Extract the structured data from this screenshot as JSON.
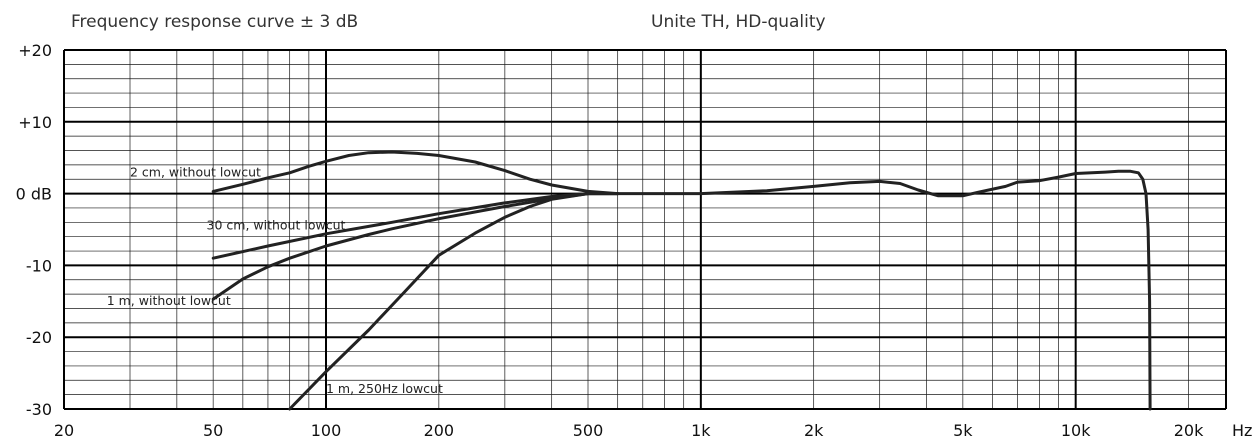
{
  "header": {
    "left_title": "Frequency response curve ± 3 dB",
    "right_title": "Unite TH, HD-quality"
  },
  "chart_data": {
    "type": "line",
    "x_scale": "log",
    "xlim": [
      20,
      20000
    ],
    "ylim": [
      -30,
      20
    ],
    "x_unit_label": "Hz",
    "grid": true,
    "x_ticks": [
      {
        "value": 20,
        "label": "20"
      },
      {
        "value": 50,
        "label": "50"
      },
      {
        "value": 100,
        "label": "100"
      },
      {
        "value": 200,
        "label": "200"
      },
      {
        "value": 500,
        "label": "500"
      },
      {
        "value": 1000,
        "label": "1k"
      },
      {
        "value": 2000,
        "label": "2k"
      },
      {
        "value": 5000,
        "label": "5k"
      },
      {
        "value": 10000,
        "label": "10k"
      },
      {
        "value": 20000,
        "label": "20k"
      }
    ],
    "y_ticks": [
      {
        "value": 20,
        "label": "+20"
      },
      {
        "value": 10,
        "label": "+10"
      },
      {
        "value": 0,
        "label": "0 dB"
      },
      {
        "value": -10,
        "label": "-10"
      },
      {
        "value": -20,
        "label": "-20"
      },
      {
        "value": -30,
        "label": "-30"
      }
    ],
    "series": [
      {
        "name": "2 cm, without lowcut",
        "points": [
          [
            50,
            0.3
          ],
          [
            60,
            1.3
          ],
          [
            70,
            2.2
          ],
          [
            80,
            2.9
          ],
          [
            90,
            3.8
          ],
          [
            100,
            4.5
          ],
          [
            115,
            5.3
          ],
          [
            130,
            5.7
          ],
          [
            150,
            5.8
          ],
          [
            175,
            5.6
          ],
          [
            200,
            5.3
          ],
          [
            250,
            4.4
          ],
          [
            300,
            3.2
          ],
          [
            350,
            2.0
          ],
          [
            400,
            1.2
          ],
          [
            500,
            0.3
          ],
          [
            600,
            0
          ],
          [
            1000,
            0
          ],
          [
            1500,
            0.4
          ],
          [
            2000,
            1.0
          ],
          [
            2500,
            1.5
          ],
          [
            3000,
            1.7
          ],
          [
            3400,
            1.4
          ],
          [
            3800,
            0.5
          ],
          [
            4300,
            -0.3
          ],
          [
            5000,
            -0.3
          ],
          [
            5500,
            0.2
          ],
          [
            6500,
            1.0
          ],
          [
            7000,
            1.6
          ],
          [
            8000,
            1.8
          ],
          [
            9000,
            2.3
          ],
          [
            10000,
            2.8
          ],
          [
            12000,
            3.0
          ],
          [
            13000,
            3.1
          ],
          [
            14000,
            3.1
          ],
          [
            14700,
            2.9
          ],
          [
            15100,
            2.0
          ],
          [
            15400,
            0
          ],
          [
            15600,
            -5
          ],
          [
            15750,
            -15
          ],
          [
            15800,
            -30
          ]
        ]
      },
      {
        "name": "30 cm, without lowcut",
        "points": [
          [
            50,
            -9
          ],
          [
            70,
            -7.3
          ],
          [
            100,
            -5.6
          ],
          [
            150,
            -4.0
          ],
          [
            200,
            -2.8
          ],
          [
            300,
            -1.3
          ],
          [
            400,
            -0.4
          ],
          [
            500,
            0
          ],
          [
            600,
            0
          ]
        ]
      },
      {
        "name": "1 m, without lowcut",
        "points": [
          [
            50,
            -14.7
          ],
          [
            60,
            -11.9
          ],
          [
            70,
            -10.2
          ],
          [
            80,
            -9.0
          ],
          [
            100,
            -7.3
          ],
          [
            130,
            -5.7
          ],
          [
            150,
            -4.9
          ],
          [
            200,
            -3.5
          ],
          [
            300,
            -1.8
          ],
          [
            400,
            -0.7
          ],
          [
            500,
            0
          ],
          [
            600,
            0
          ]
        ]
      },
      {
        "name": "1 m, 250Hz lowcut",
        "points": [
          [
            80,
            -30
          ],
          [
            100,
            -24.8
          ],
          [
            130,
            -19.0
          ],
          [
            160,
            -14.0
          ],
          [
            200,
            -8.6
          ],
          [
            250,
            -5.5
          ],
          [
            300,
            -3.3
          ],
          [
            350,
            -1.8
          ],
          [
            400,
            -0.8
          ],
          [
            500,
            0
          ],
          [
            600,
            0
          ]
        ]
      }
    ],
    "annotations": [
      {
        "text": "2 cm, without lowcut",
        "x": 30,
        "y": 2.4
      },
      {
        "text": "30 cm, without lowcut",
        "x": 48,
        "y": -5
      },
      {
        "text": "1 m, without lowcut",
        "x": 26,
        "y": -15.5
      },
      {
        "text": "1 m, 250Hz lowcut",
        "x": 100,
        "y": -27.8
      }
    ]
  }
}
